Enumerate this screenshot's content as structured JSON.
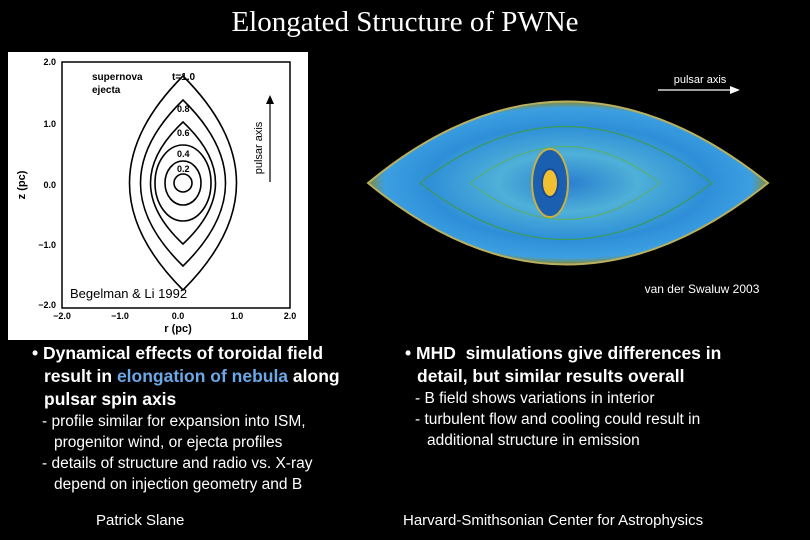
{
  "title": "Elongated Structure of PWNe",
  "left_figure": {
    "label_supernova": "supernova",
    "label_ejecta": "ejecta",
    "label_time": "t=1.0",
    "contour_labels": [
      "0.8",
      "0.6",
      "0.4",
      "0.2"
    ],
    "y_ticks": [
      "2.0",
      "1.0",
      "0.0",
      "−1.0",
      "−2.0"
    ],
    "x_ticks": [
      "−2.0",
      "−1.0",
      "0.0",
      "1.0",
      "2.0"
    ],
    "y_label": "z (pc)",
    "x_label": "r (pc)",
    "axis_label": "pulsar axis",
    "credit": "Begelman & Li 1992"
  },
  "right_figure": {
    "axis_label": "pulsar axis",
    "credit": "van der Swaluw 2003"
  },
  "left_text": {
    "main": [
      "• Dynamical effects of toroidal field",
      [
        "result in ",
        "elongation of nebula",
        " along"
      ],
      "pulsar spin axis"
    ],
    "subs": [
      [
        "- profile similar for expansion into ISM,",
        "progenitor wind, or ejecta profiles"
      ],
      [
        "- details of structure and radio vs. X-ray",
        "depend on injection geometry and B"
      ]
    ]
  },
  "right_text": {
    "main": [
      "• MHD  simulations give differences in",
      "detail, but similar results overall"
    ],
    "subs": [
      [
        "- B field shows variations in interior"
      ],
      [
        "- turbulent flow and cooling could result in",
        "additional structure in emission"
      ]
    ]
  },
  "footer": {
    "left": "Patrick Slane",
    "right": "Harvard-Smithsonian Center for Astrophysics"
  }
}
